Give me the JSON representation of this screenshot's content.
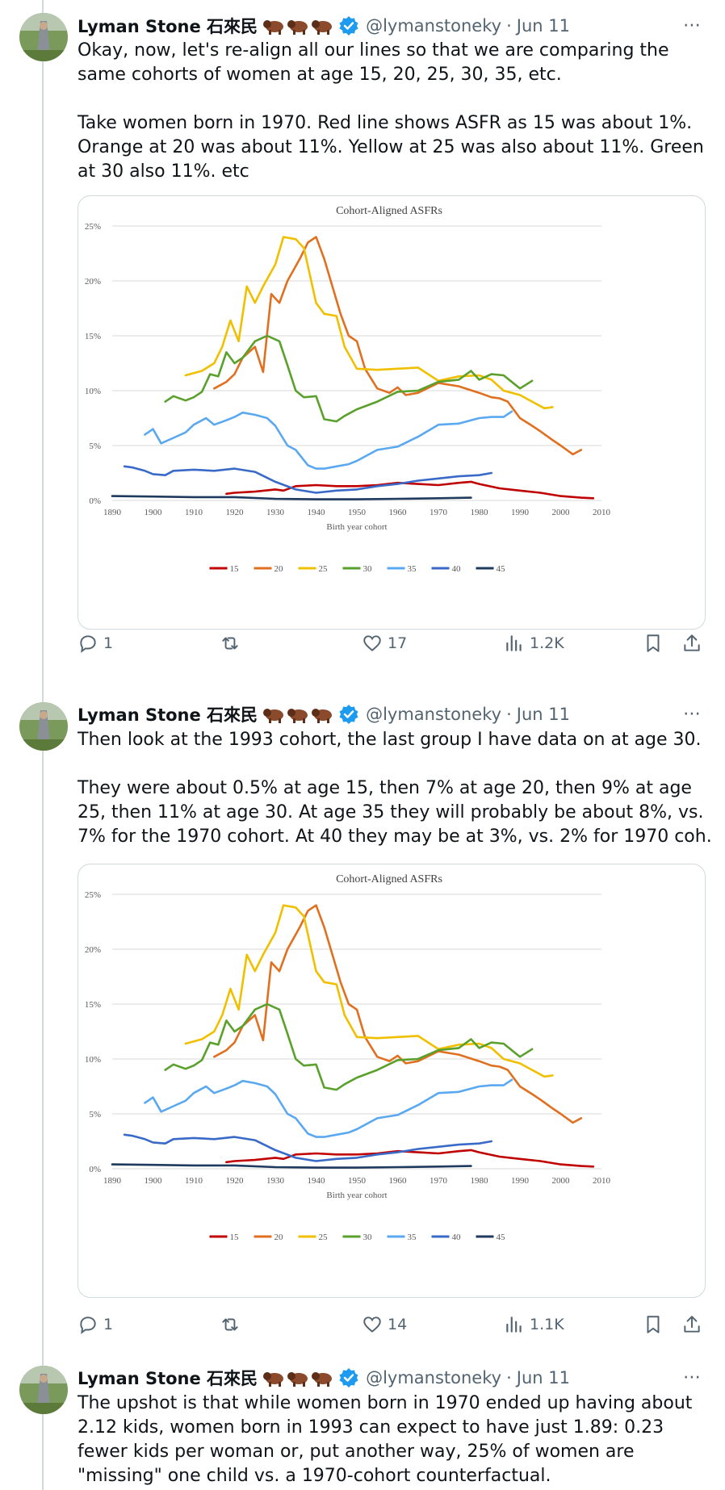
{
  "tweets": [
    {
      "author": "Lyman Stone 石來民",
      "handle": "@lymanstoneky",
      "date": "Jun 11",
      "text": "Okay, now, let's re-align all our lines so that we are comparing the same cohorts of women at age 15, 20, 25, 30, 35, etc.\n\nTake women born in 1970. Red line shows ASFR as 15 was about 1%. Orange at 20 was about 11%. Yellow at 25 was also about 11%. Green at 30 also 11%. etc",
      "replies": "1",
      "reposts": "",
      "likes": "17",
      "views": "1.2K"
    },
    {
      "author": "Lyman Stone 石來民",
      "handle": "@lymanstoneky",
      "date": "Jun 11",
      "text": "Then look at the 1993 cohort, the last group I have data on at age 30.\n\nThey were about 0.5% at age 15, then 7% at age 20, then 9% at age 25, then 11% at age 30. At age 35 they will probably be about 8%, vs. 7% for the 1970 cohort. At 40 they may be at 3%, vs. 2% for 1970 coh.",
      "replies": "1",
      "reposts": "",
      "likes": "14",
      "views": "1.1K"
    },
    {
      "author": "Lyman Stone 石來民",
      "handle": "@lymanstoneky",
      "date": "Jun 11",
      "text": "The upshot is that while women born in 1970 ended up having about 2.12 kids, women born in 1993 can expect to have just 1.89: 0.23 fewer kids per woman or, put another way, 25% of women are \"missing\" one child vs. a 1970-cohort counterfactual."
    }
  ],
  "icons": {
    "reply": "reply-icon",
    "repost": "repost-icon",
    "like": "heart-icon",
    "views": "views-icon",
    "bookmark": "bookmark-icon",
    "share": "share-icon",
    "more": "more-icon",
    "verified": "verified-icon",
    "emoji": "bison-emoji"
  },
  "colors": {
    "text": "#0f1419",
    "muted": "#536471",
    "verified": "#1d9bf0",
    "border": "#cfd9de"
  },
  "chart_data": [
    {
      "type": "line",
      "title": "Cohort-Aligned ASFRs",
      "xlabel": "Birth year cohort",
      "ylabel": "",
      "xlim": [
        1890,
        2010
      ],
      "ylim": [
        0,
        25
      ],
      "xticks": [
        1890,
        1900,
        1910,
        1920,
        1930,
        1940,
        1950,
        1960,
        1970,
        1980,
        1990,
        2000,
        2010
      ],
      "yticks": [
        "0%",
        "5%",
        "10%",
        "15%",
        "20%",
        "25%"
      ],
      "grid": true,
      "legend": "bottom",
      "series": [
        {
          "name": "15",
          "color": "#c00000",
          "x": [
            1918,
            1920,
            1925,
            1930,
            1932,
            1935,
            1940,
            1945,
            1950,
            1955,
            1960,
            1965,
            1970,
            1975,
            1978,
            1980,
            1985,
            1990,
            1995,
            2000,
            2005,
            2008
          ],
          "values": [
            0.6,
            0.7,
            0.8,
            1.0,
            0.9,
            1.3,
            1.4,
            1.3,
            1.3,
            1.4,
            1.6,
            1.5,
            1.4,
            1.6,
            1.7,
            1.5,
            1.1,
            0.9,
            0.7,
            0.4,
            0.25,
            0.2
          ]
        },
        {
          "name": "20",
          "color": "#e07020",
          "x": [
            1915,
            1918,
            1920,
            1922,
            1925,
            1927,
            1929,
            1931,
            1933,
            1936,
            1938,
            1940,
            1942,
            1944,
            1946,
            1948,
            1950,
            1952,
            1955,
            1958,
            1960,
            1962,
            1965,
            1970,
            1975,
            1980,
            1983,
            1985,
            1987,
            1990,
            1993,
            1995,
            1998,
            2000,
            2003,
            2005
          ],
          "values": [
            10.2,
            10.8,
            11.5,
            13.0,
            14.0,
            11.7,
            18.8,
            18.0,
            20.0,
            22.0,
            23.5,
            24.0,
            22.0,
            19.5,
            17.0,
            15.0,
            14.5,
            12.0,
            10.2,
            9.8,
            10.3,
            9.6,
            9.8,
            10.7,
            10.4,
            9.8,
            9.4,
            9.3,
            9.0,
            7.5,
            6.8,
            6.3,
            5.5,
            5.0,
            4.2,
            4.6
          ]
        },
        {
          "name": "25",
          "color": "#f0c000",
          "x": [
            1908,
            1910,
            1912,
            1915,
            1917,
            1919,
            1921,
            1923,
            1925,
            1927,
            1930,
            1932,
            1935,
            1937,
            1940,
            1942,
            1945,
            1947,
            1950,
            1955,
            1960,
            1965,
            1970,
            1975,
            1980,
            1983,
            1986,
            1990,
            1993,
            1996,
            1998
          ],
          "values": [
            11.4,
            11.6,
            11.8,
            12.5,
            14.0,
            16.4,
            14.5,
            19.5,
            18.0,
            19.5,
            21.5,
            24.0,
            23.8,
            23.0,
            18.0,
            17.0,
            16.8,
            14.0,
            12.0,
            11.9,
            12.0,
            12.1,
            10.9,
            11.3,
            11.4,
            11.0,
            10.0,
            9.6,
            9.0,
            8.4,
            8.5
          ]
        },
        {
          "name": "30",
          "color": "#5aa02c",
          "x": [
            1903,
            1905,
            1908,
            1910,
            1912,
            1914,
            1916,
            1918,
            1920,
            1922,
            1925,
            1928,
            1931,
            1933,
            1935,
            1937,
            1940,
            1942,
            1945,
            1947,
            1950,
            1955,
            1960,
            1965,
            1970,
            1975,
            1978,
            1980,
            1983,
            1986,
            1990,
            1993
          ],
          "values": [
            9.0,
            9.5,
            9.1,
            9.4,
            9.9,
            11.5,
            11.3,
            13.5,
            12.5,
            13.0,
            14.5,
            15.0,
            14.5,
            12.3,
            10.0,
            9.4,
            9.5,
            7.4,
            7.2,
            7.7,
            8.3,
            9.0,
            9.9,
            10.0,
            10.8,
            11.0,
            11.8,
            11.0,
            11.5,
            11.4,
            10.2,
            10.9
          ]
        },
        {
          "name": "35",
          "color": "#5aa8f0",
          "x": [
            1898,
            1900,
            1902,
            1905,
            1908,
            1910,
            1913,
            1915,
            1918,
            1920,
            1922,
            1925,
            1928,
            1930,
            1933,
            1935,
            1938,
            1940,
            1942,
            1945,
            1948,
            1950,
            1955,
            1960,
            1965,
            1970,
            1975,
            1980,
            1983,
            1986,
            1988
          ],
          "values": [
            6.0,
            6.5,
            5.2,
            5.7,
            6.2,
            6.9,
            7.5,
            6.9,
            7.3,
            7.6,
            8.0,
            7.8,
            7.5,
            6.8,
            5.0,
            4.6,
            3.2,
            2.9,
            2.9,
            3.1,
            3.3,
            3.6,
            4.6,
            4.9,
            5.8,
            6.9,
            7.0,
            7.5,
            7.6,
            7.6,
            8.1
          ]
        },
        {
          "name": "40",
          "color": "#3a6ac8",
          "x": [
            1893,
            1895,
            1898,
            1900,
            1903,
            1905,
            1910,
            1915,
            1920,
            1925,
            1930,
            1935,
            1940,
            1945,
            1950,
            1955,
            1960,
            1965,
            1970,
            1975,
            1980,
            1983
          ],
          "values": [
            3.1,
            3.0,
            2.7,
            2.4,
            2.3,
            2.7,
            2.8,
            2.7,
            2.9,
            2.6,
            1.7,
            1.0,
            0.7,
            0.9,
            1.0,
            1.3,
            1.5,
            1.8,
            2.0,
            2.2,
            2.3,
            2.5
          ]
        },
        {
          "name": "45",
          "color": "#1f3a5f",
          "x": [
            1890,
            1900,
            1910,
            1920,
            1930,
            1940,
            1950,
            1960,
            1970,
            1978
          ],
          "values": [
            0.4,
            0.35,
            0.3,
            0.3,
            0.15,
            0.1,
            0.1,
            0.15,
            0.2,
            0.25
          ]
        }
      ]
    },
    {
      "type": "line",
      "title": "Cohort-Aligned ASFRs",
      "xlabel": "Birth year cohort",
      "ylabel": "",
      "xlim": [
        1890,
        2010
      ],
      "ylim": [
        0,
        25
      ],
      "xticks": [
        1890,
        1900,
        1910,
        1920,
        1930,
        1940,
        1950,
        1960,
        1970,
        1980,
        1990,
        2000,
        2010
      ],
      "yticks": [
        "0%",
        "5%",
        "10%",
        "15%",
        "20%",
        "25%"
      ],
      "grid": true,
      "legend": "bottom",
      "series": [
        {
          "name": "15",
          "color": "#c00000",
          "x": [
            1918,
            1920,
            1925,
            1930,
            1932,
            1935,
            1940,
            1945,
            1950,
            1955,
            1960,
            1965,
            1970,
            1975,
            1978,
            1980,
            1985,
            1990,
            1995,
            2000,
            2005,
            2008
          ],
          "values": [
            0.6,
            0.7,
            0.8,
            1.0,
            0.9,
            1.3,
            1.4,
            1.3,
            1.3,
            1.4,
            1.6,
            1.5,
            1.4,
            1.6,
            1.7,
            1.5,
            1.1,
            0.9,
            0.7,
            0.4,
            0.25,
            0.2
          ]
        },
        {
          "name": "20",
          "color": "#e07020",
          "x": [
            1915,
            1918,
            1920,
            1922,
            1925,
            1927,
            1929,
            1931,
            1933,
            1936,
            1938,
            1940,
            1942,
            1944,
            1946,
            1948,
            1950,
            1952,
            1955,
            1958,
            1960,
            1962,
            1965,
            1970,
            1975,
            1980,
            1983,
            1985,
            1987,
            1990,
            1993,
            1995,
            1998,
            2000,
            2003,
            2005
          ],
          "values": [
            10.2,
            10.8,
            11.5,
            13.0,
            14.0,
            11.7,
            18.8,
            18.0,
            20.0,
            22.0,
            23.5,
            24.0,
            22.0,
            19.5,
            17.0,
            15.0,
            14.5,
            12.0,
            10.2,
            9.8,
            10.3,
            9.6,
            9.8,
            10.7,
            10.4,
            9.8,
            9.4,
            9.3,
            9.0,
            7.5,
            6.8,
            6.3,
            5.5,
            5.0,
            4.2,
            4.6
          ]
        },
        {
          "name": "25",
          "color": "#f0c000",
          "x": [
            1908,
            1910,
            1912,
            1915,
            1917,
            1919,
            1921,
            1923,
            1925,
            1927,
            1930,
            1932,
            1935,
            1937,
            1940,
            1942,
            1945,
            1947,
            1950,
            1955,
            1960,
            1965,
            1970,
            1975,
            1980,
            1983,
            1986,
            1990,
            1993,
            1996,
            1998
          ],
          "values": [
            11.4,
            11.6,
            11.8,
            12.5,
            14.0,
            16.4,
            14.5,
            19.5,
            18.0,
            19.5,
            21.5,
            24.0,
            23.8,
            23.0,
            18.0,
            17.0,
            16.8,
            14.0,
            12.0,
            11.9,
            12.0,
            12.1,
            10.9,
            11.3,
            11.4,
            11.0,
            10.0,
            9.6,
            9.0,
            8.4,
            8.5
          ]
        },
        {
          "name": "30",
          "color": "#5aa02c",
          "x": [
            1903,
            1905,
            1908,
            1910,
            1912,
            1914,
            1916,
            1918,
            1920,
            1922,
            1925,
            1928,
            1931,
            1933,
            1935,
            1937,
            1940,
            1942,
            1945,
            1947,
            1950,
            1955,
            1960,
            1965,
            1970,
            1975,
            1978,
            1980,
            1983,
            1986,
            1990,
            1993
          ],
          "values": [
            9.0,
            9.5,
            9.1,
            9.4,
            9.9,
            11.5,
            11.3,
            13.5,
            12.5,
            13.0,
            14.5,
            15.0,
            14.5,
            12.3,
            10.0,
            9.4,
            9.5,
            7.4,
            7.2,
            7.7,
            8.3,
            9.0,
            9.9,
            10.0,
            10.8,
            11.0,
            11.8,
            11.0,
            11.5,
            11.4,
            10.2,
            10.9
          ]
        },
        {
          "name": "35",
          "color": "#5aa8f0",
          "x": [
            1898,
            1900,
            1902,
            1905,
            1908,
            1910,
            1913,
            1915,
            1918,
            1920,
            1922,
            1925,
            1928,
            1930,
            1933,
            1935,
            1938,
            1940,
            1942,
            1945,
            1948,
            1950,
            1955,
            1960,
            1965,
            1970,
            1975,
            1980,
            1983,
            1986,
            1988
          ],
          "values": [
            6.0,
            6.5,
            5.2,
            5.7,
            6.2,
            6.9,
            7.5,
            6.9,
            7.3,
            7.6,
            8.0,
            7.8,
            7.5,
            6.8,
            5.0,
            4.6,
            3.2,
            2.9,
            2.9,
            3.1,
            3.3,
            3.6,
            4.6,
            4.9,
            5.8,
            6.9,
            7.0,
            7.5,
            7.6,
            7.6,
            8.1
          ]
        },
        {
          "name": "40",
          "color": "#3a6ac8",
          "x": [
            1893,
            1895,
            1898,
            1900,
            1903,
            1905,
            1910,
            1915,
            1920,
            1925,
            1930,
            1935,
            1940,
            1945,
            1950,
            1955,
            1960,
            1965,
            1970,
            1975,
            1980,
            1983
          ],
          "values": [
            3.1,
            3.0,
            2.7,
            2.4,
            2.3,
            2.7,
            2.8,
            2.7,
            2.9,
            2.6,
            1.7,
            1.0,
            0.7,
            0.9,
            1.0,
            1.3,
            1.5,
            1.8,
            2.0,
            2.2,
            2.3,
            2.5
          ]
        },
        {
          "name": "45",
          "color": "#1f3a5f",
          "x": [
            1890,
            1900,
            1910,
            1920,
            1930,
            1940,
            1950,
            1960,
            1970,
            1978
          ],
          "values": [
            0.4,
            0.35,
            0.3,
            0.3,
            0.15,
            0.1,
            0.1,
            0.15,
            0.2,
            0.25
          ]
        }
      ]
    }
  ]
}
